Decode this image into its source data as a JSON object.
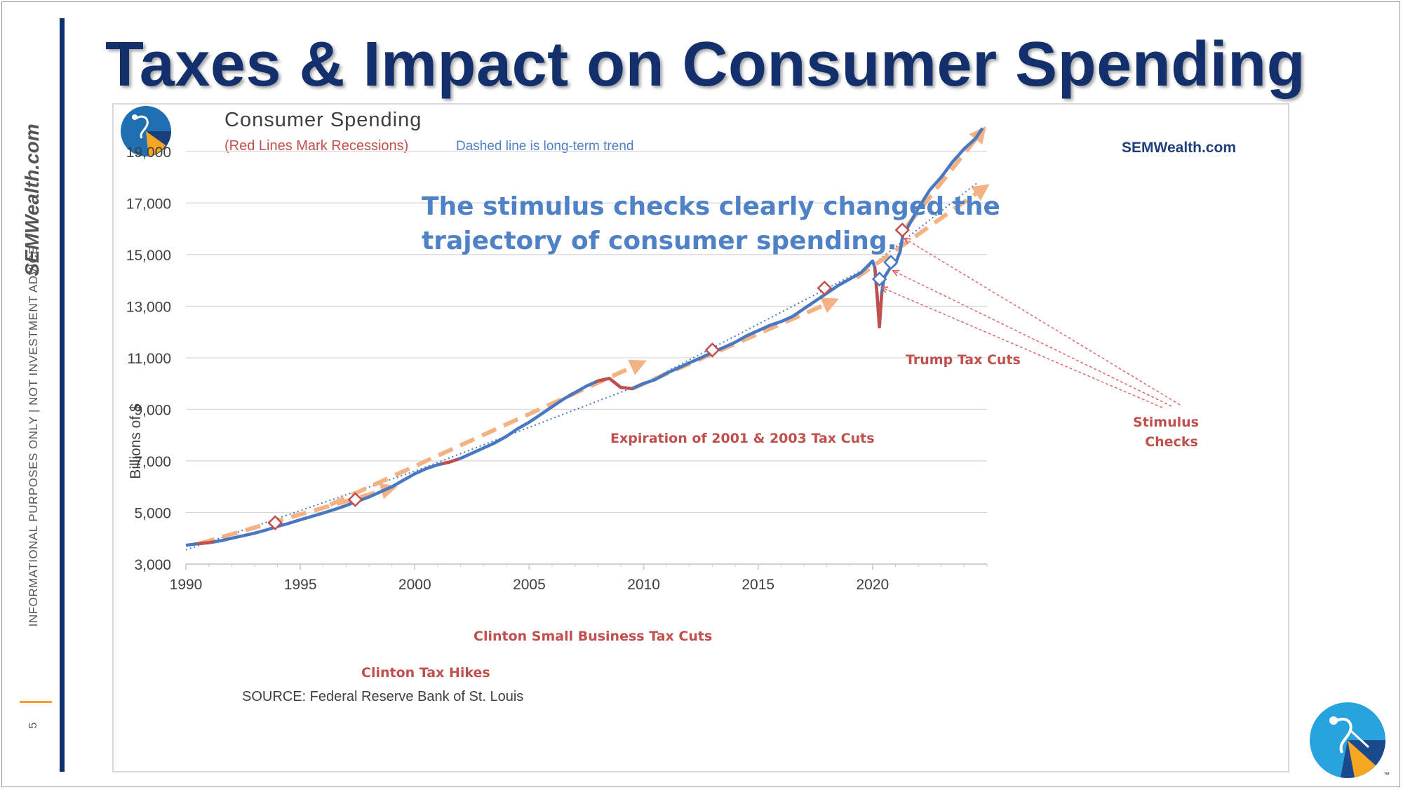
{
  "slide": {
    "title": "Taxes & Impact on Consumer Spending",
    "side_brand": "SEMWealth.com",
    "disclaimer": "INFORMATIONAL PURPOSES ONLY | NOT INVESTMENT ADVICE",
    "page_number": "5",
    "logo": "semwealth-logo",
    "trademark": "™"
  },
  "colors": {
    "title": "#13306c",
    "series_line": "#4a78c0",
    "recession": "#c0504d",
    "trend_arrow": "#f4b183",
    "annotation_text": "#c0504d",
    "callout_text": "#4f81c7",
    "rule": "#0f2f6e"
  },
  "chart_data": {
    "type": "line",
    "title": "Consumer Spending",
    "subtitle_red": "(Red Lines Mark Recessions)",
    "subtitle_blue": "Dashed line is long-term trend",
    "watermark": "SEMWealth.com",
    "ylabel": "Billions of $",
    "xlabel": "",
    "ylim": [
      3000,
      20000
    ],
    "xlim": [
      1990,
      2025
    ],
    "yticks": [
      3000,
      5000,
      7000,
      9000,
      11000,
      13000,
      15000,
      17000,
      19000
    ],
    "ytick_labels": [
      "3,000",
      "5,000",
      "7,000",
      "9,000",
      "11,000",
      "13,000",
      "15,000",
      "17,000",
      "19,000"
    ],
    "xticks": [
      1990,
      1995,
      2000,
      2005,
      2010,
      2015,
      2020
    ],
    "xtick_labels": [
      "1990",
      "1995",
      "2000",
      "2005",
      "2010",
      "2015",
      "2020"
    ],
    "grid": "horizontal",
    "source": "SOURCE:  Federal Reserve Bank of St. Louis",
    "callout": [
      "The stimulus checks clearly changed the",
      "trajectory of consumer spending."
    ],
    "series": [
      {
        "values": [
          [
            1990.0,
            3730
          ],
          [
            1990.5,
            3790
          ],
          [
            1991.0,
            3830
          ],
          [
            1991.5,
            3900
          ],
          [
            1992.0,
            4000
          ],
          [
            1992.5,
            4100
          ],
          [
            1993.0,
            4200
          ],
          [
            1993.5,
            4320
          ],
          [
            1994.0,
            4460
          ],
          [
            1994.5,
            4580
          ],
          [
            1995.0,
            4720
          ],
          [
            1995.5,
            4850
          ],
          [
            1996.0,
            4980
          ],
          [
            1996.5,
            5120
          ],
          [
            1997.0,
            5270
          ],
          [
            1997.5,
            5440
          ],
          [
            1998.0,
            5600
          ],
          [
            1998.5,
            5800
          ],
          [
            1999.0,
            6000
          ],
          [
            1999.5,
            6250
          ],
          [
            2000.0,
            6500
          ],
          [
            2000.5,
            6700
          ],
          [
            2001.0,
            6850
          ],
          [
            2001.5,
            6950
          ],
          [
            2002.0,
            7100
          ],
          [
            2002.5,
            7300
          ],
          [
            2003.0,
            7500
          ],
          [
            2003.5,
            7700
          ],
          [
            2004.0,
            7950
          ],
          [
            2004.5,
            8250
          ],
          [
            2005.0,
            8500
          ],
          [
            2005.5,
            8800
          ],
          [
            2006.0,
            9100
          ],
          [
            2006.5,
            9400
          ],
          [
            2007.0,
            9650
          ],
          [
            2007.5,
            9900
          ],
          [
            2008.0,
            10100
          ],
          [
            2008.5,
            10200
          ],
          [
            2009.0,
            9850
          ],
          [
            2009.5,
            9800
          ],
          [
            2010.0,
            10000
          ],
          [
            2010.5,
            10150
          ],
          [
            2011.0,
            10400
          ],
          [
            2011.5,
            10600
          ],
          [
            2012.0,
            10800
          ],
          [
            2012.5,
            11000
          ],
          [
            2013.0,
            11200
          ],
          [
            2013.5,
            11400
          ],
          [
            2014.0,
            11600
          ],
          [
            2014.5,
            11850
          ],
          [
            2015.0,
            12050
          ],
          [
            2015.5,
            12250
          ],
          [
            2016.0,
            12400
          ],
          [
            2016.5,
            12600
          ],
          [
            2017.0,
            12900
          ],
          [
            2017.5,
            13200
          ],
          [
            2018.0,
            13500
          ],
          [
            2018.5,
            13800
          ],
          [
            2019.0,
            14050
          ],
          [
            2019.5,
            14300
          ],
          [
            2020.0,
            14750
          ],
          [
            2020.1,
            14500
          ],
          [
            2020.2,
            13400
          ],
          [
            2020.3,
            12200
          ],
          [
            2020.4,
            13500
          ],
          [
            2020.5,
            14100
          ],
          [
            2020.75,
            14450
          ],
          [
            2021.0,
            14650
          ],
          [
            2021.2,
            15100
          ],
          [
            2021.35,
            15900
          ],
          [
            2021.5,
            16000
          ],
          [
            2022.0,
            16800
          ],
          [
            2022.5,
            17500
          ],
          [
            2023.0,
            18000
          ],
          [
            2023.5,
            18600
          ],
          [
            2024.0,
            19100
          ],
          [
            2024.5,
            19500
          ],
          [
            2024.8,
            19900
          ]
        ]
      }
    ],
    "recessions": [
      [
        1990.5,
        1991.2
      ],
      [
        2001.2,
        2001.9
      ],
      [
        2007.9,
        2009.5
      ],
      [
        2020.1,
        2020.4
      ]
    ],
    "long_term_trend": [
      [
        1990.0,
        3550
      ],
      [
        2000.0,
        6600
      ],
      [
        2010.0,
        10000
      ],
      [
        2020.0,
        14600
      ],
      [
        2024.6,
        17800
      ]
    ],
    "trend_arrows": [
      [
        [
          1990.6,
          3800
        ],
        [
          1999.0,
          5950
        ]
      ],
      [
        [
          1996.3,
          5300
        ],
        [
          2009.9,
          10800
        ]
      ],
      [
        [
          2009.5,
          9800
        ],
        [
          2018.3,
          13200
        ]
      ],
      [
        [
          2019.3,
          14100
        ],
        [
          2024.9,
          17600
        ]
      ],
      [
        [
          2021.5,
          16100
        ],
        [
          2024.8,
          19800
        ]
      ]
    ],
    "annotations": [
      {
        "label": "Clinton Tax Hikes",
        "x": 1993.9,
        "y": 4600
      },
      {
        "label": "Clinton Small Business Tax Cuts",
        "x": 1997.4,
        "y": 5500
      },
      {
        "label": "Expiration of 2001 & 2003 Tax Cuts",
        "x": 2013.0,
        "y": 11300
      },
      {
        "label": "Trump Tax Cuts",
        "x": 2017.9,
        "y": 13700
      }
    ],
    "stimulus": {
      "label_line1": "Stimulus",
      "label_line2": "Checks",
      "points": [
        [
          2020.3,
          14050
        ],
        [
          2020.8,
          14700
        ],
        [
          2021.3,
          15950
        ]
      ]
    }
  }
}
